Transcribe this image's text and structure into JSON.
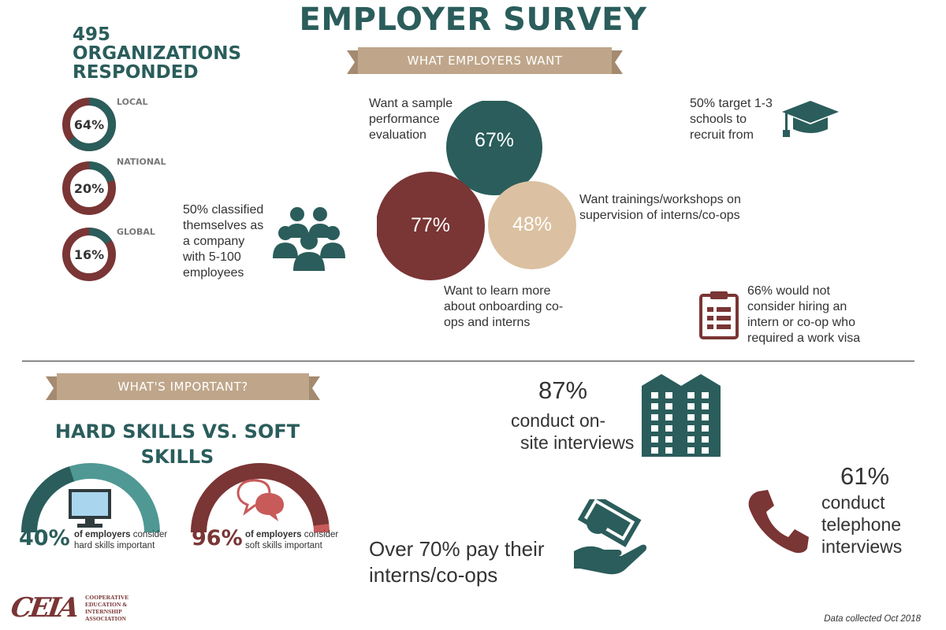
{
  "title": "EMPLOYER SURVEY",
  "organizations": {
    "line1": "495",
    "line2": "ORGANIZATIONS",
    "line3": "RESPONDED"
  },
  "sections": {
    "what_employers_want": "WHAT EMPLOYERS WANT",
    "whats_important": "WHAT'S IMPORTANT?"
  },
  "reach": [
    {
      "label": "LOCAL",
      "value": "64%",
      "fraction": 0.64
    },
    {
      "label": "NATIONAL",
      "value": "20%",
      "fraction": 0.2
    },
    {
      "label": "GLOBAL",
      "value": "16%",
      "fraction": 0.16
    }
  ],
  "company_size": {
    "line1": "50% classified",
    "line2": "themselves as",
    "line3": "a company",
    "line4": "with 5-100",
    "line5": "employees",
    "icon": "people-group-icon"
  },
  "bubbles": [
    {
      "value": "67%",
      "caption": [
        "Want a sample",
        "performance",
        "evaluation"
      ],
      "color": "#2a5d5b"
    },
    {
      "value": "77%",
      "caption": [
        "Want to learn more",
        "about onboarding co-",
        "ops and interns"
      ],
      "color": "#7a3535"
    },
    {
      "value": "48%",
      "caption": [
        "Want trainings/workshops on",
        "supervision of interns/co-ops"
      ],
      "color": "#dbc1a1"
    }
  ],
  "schools": {
    "line1": "50% target 1-3",
    "line2": "schools to",
    "line3": "recruit from",
    "icon": "graduation-cap-icon"
  },
  "visa": {
    "line1": "66% would not",
    "line2": "consider hiring an",
    "line3": "intern or co-op who",
    "line4": "required a work visa",
    "icon": "clipboard-icon"
  },
  "skills": {
    "title_line1": "HARD SKILLS VS. SOFT",
    "title_line2": "SKILLS",
    "hard": {
      "value": "40%",
      "fraction": 0.4,
      "bold": "of employers",
      "rest1": " consider",
      "rest2": "hard skills important",
      "icon": "computer-monitor-icon"
    },
    "soft": {
      "value": "96%",
      "fraction": 0.96,
      "bold": "of employers",
      "rest1": " consider",
      "rest2": "soft skills important",
      "icon": "speech-bubbles-icon"
    }
  },
  "onsite": {
    "value": "87%",
    "line1": "conduct on-",
    "line2": "site interviews",
    "icon": "building-icon"
  },
  "pay": {
    "line1": "Over 70% pay their",
    "line2": "interns/co-ops",
    "icon": "hand-money-icon"
  },
  "telephone": {
    "value": "61%",
    "line1": "conduct",
    "line2": "telephone",
    "line3": "interviews",
    "icon": "telephone-icon"
  },
  "logo": {
    "letters": "CEIA",
    "line1": "COOPERATIVE",
    "line2": "EDUCATION &",
    "line3": "INTERNSHIP",
    "line4": "ASSOCIATION"
  },
  "footer": "Data collected Oct 2018",
  "colors": {
    "teal": "#2a5d5b",
    "teal_light": "#4f9894",
    "maroon": "#7a3535",
    "maroon_light": "#c85a5a",
    "tan": "#dbc1a1",
    "banner": "#bfa68a"
  }
}
